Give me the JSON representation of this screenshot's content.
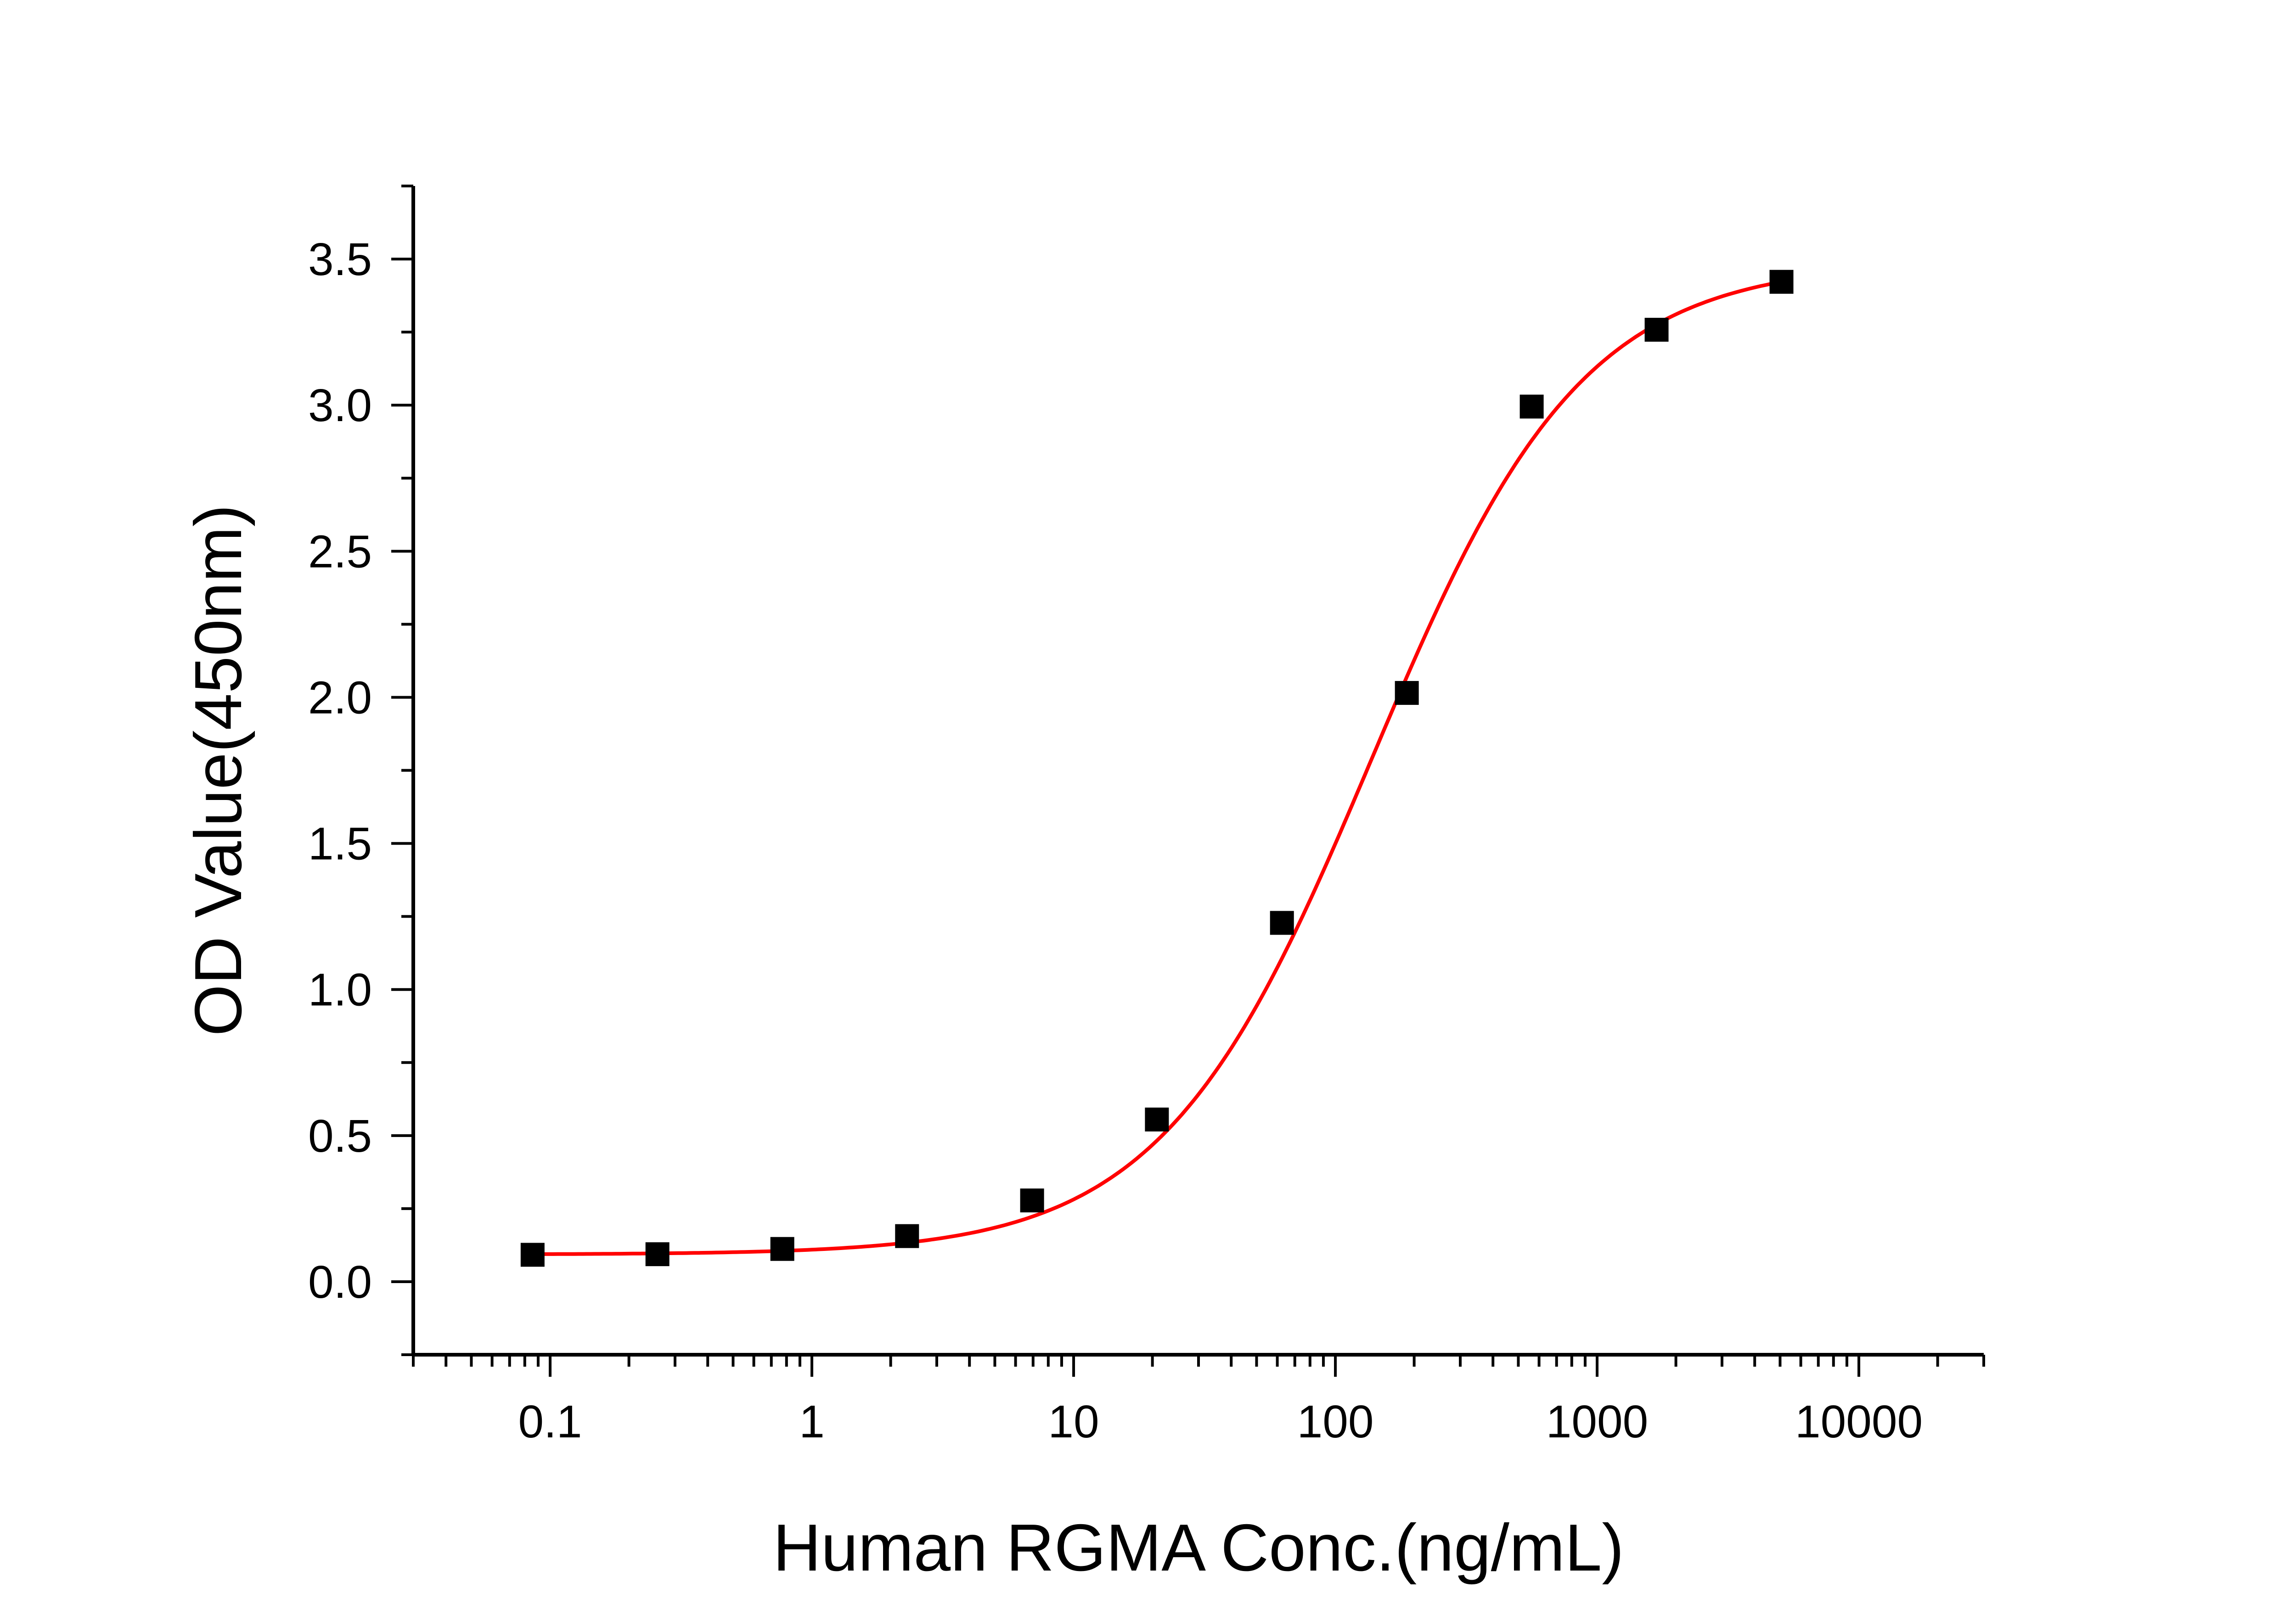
{
  "chart_data": {
    "type": "scatter",
    "title": "",
    "xlabel": "Human RGMA Conc.(ng/mL)",
    "ylabel": "OD Value(450nm)",
    "x_scale": "log",
    "xlim": [
      0.03,
      30000
    ],
    "ylim": [
      -0.25,
      3.75
    ],
    "x_ticks": [
      0.1,
      1,
      10,
      100,
      1000,
      10000
    ],
    "x_tick_labels": [
      "0.1",
      "1",
      "10",
      "100",
      "1000",
      "10000"
    ],
    "y_ticks": [
      0.0,
      0.5,
      1.0,
      1.5,
      2.0,
      2.5,
      3.0,
      3.5
    ],
    "y_tick_labels": [
      "0.0",
      "0.5",
      "1.0",
      "1.5",
      "2.0",
      "2.5",
      "3.0",
      "3.5"
    ],
    "grid": false,
    "legend": "none",
    "points": {
      "marker": "square",
      "color": "#000000",
      "x": [
        0.0857,
        0.257,
        0.771,
        2.31,
        6.94,
        20.8,
        62.5,
        187.5,
        562.5,
        1687.5,
        5062.5
      ],
      "y": [
        0.092,
        0.094,
        0.112,
        0.156,
        0.278,
        0.555,
        1.228,
        2.015,
        2.995,
        3.258,
        3.422
      ]
    },
    "fit_curve": {
      "kind": "four-parameter logistic",
      "color": "#ff0000",
      "bottom": 0.093,
      "top": 3.49,
      "ec50": 138,
      "hill": 1.08,
      "x_range": [
        0.0857,
        5062.5
      ]
    }
  }
}
